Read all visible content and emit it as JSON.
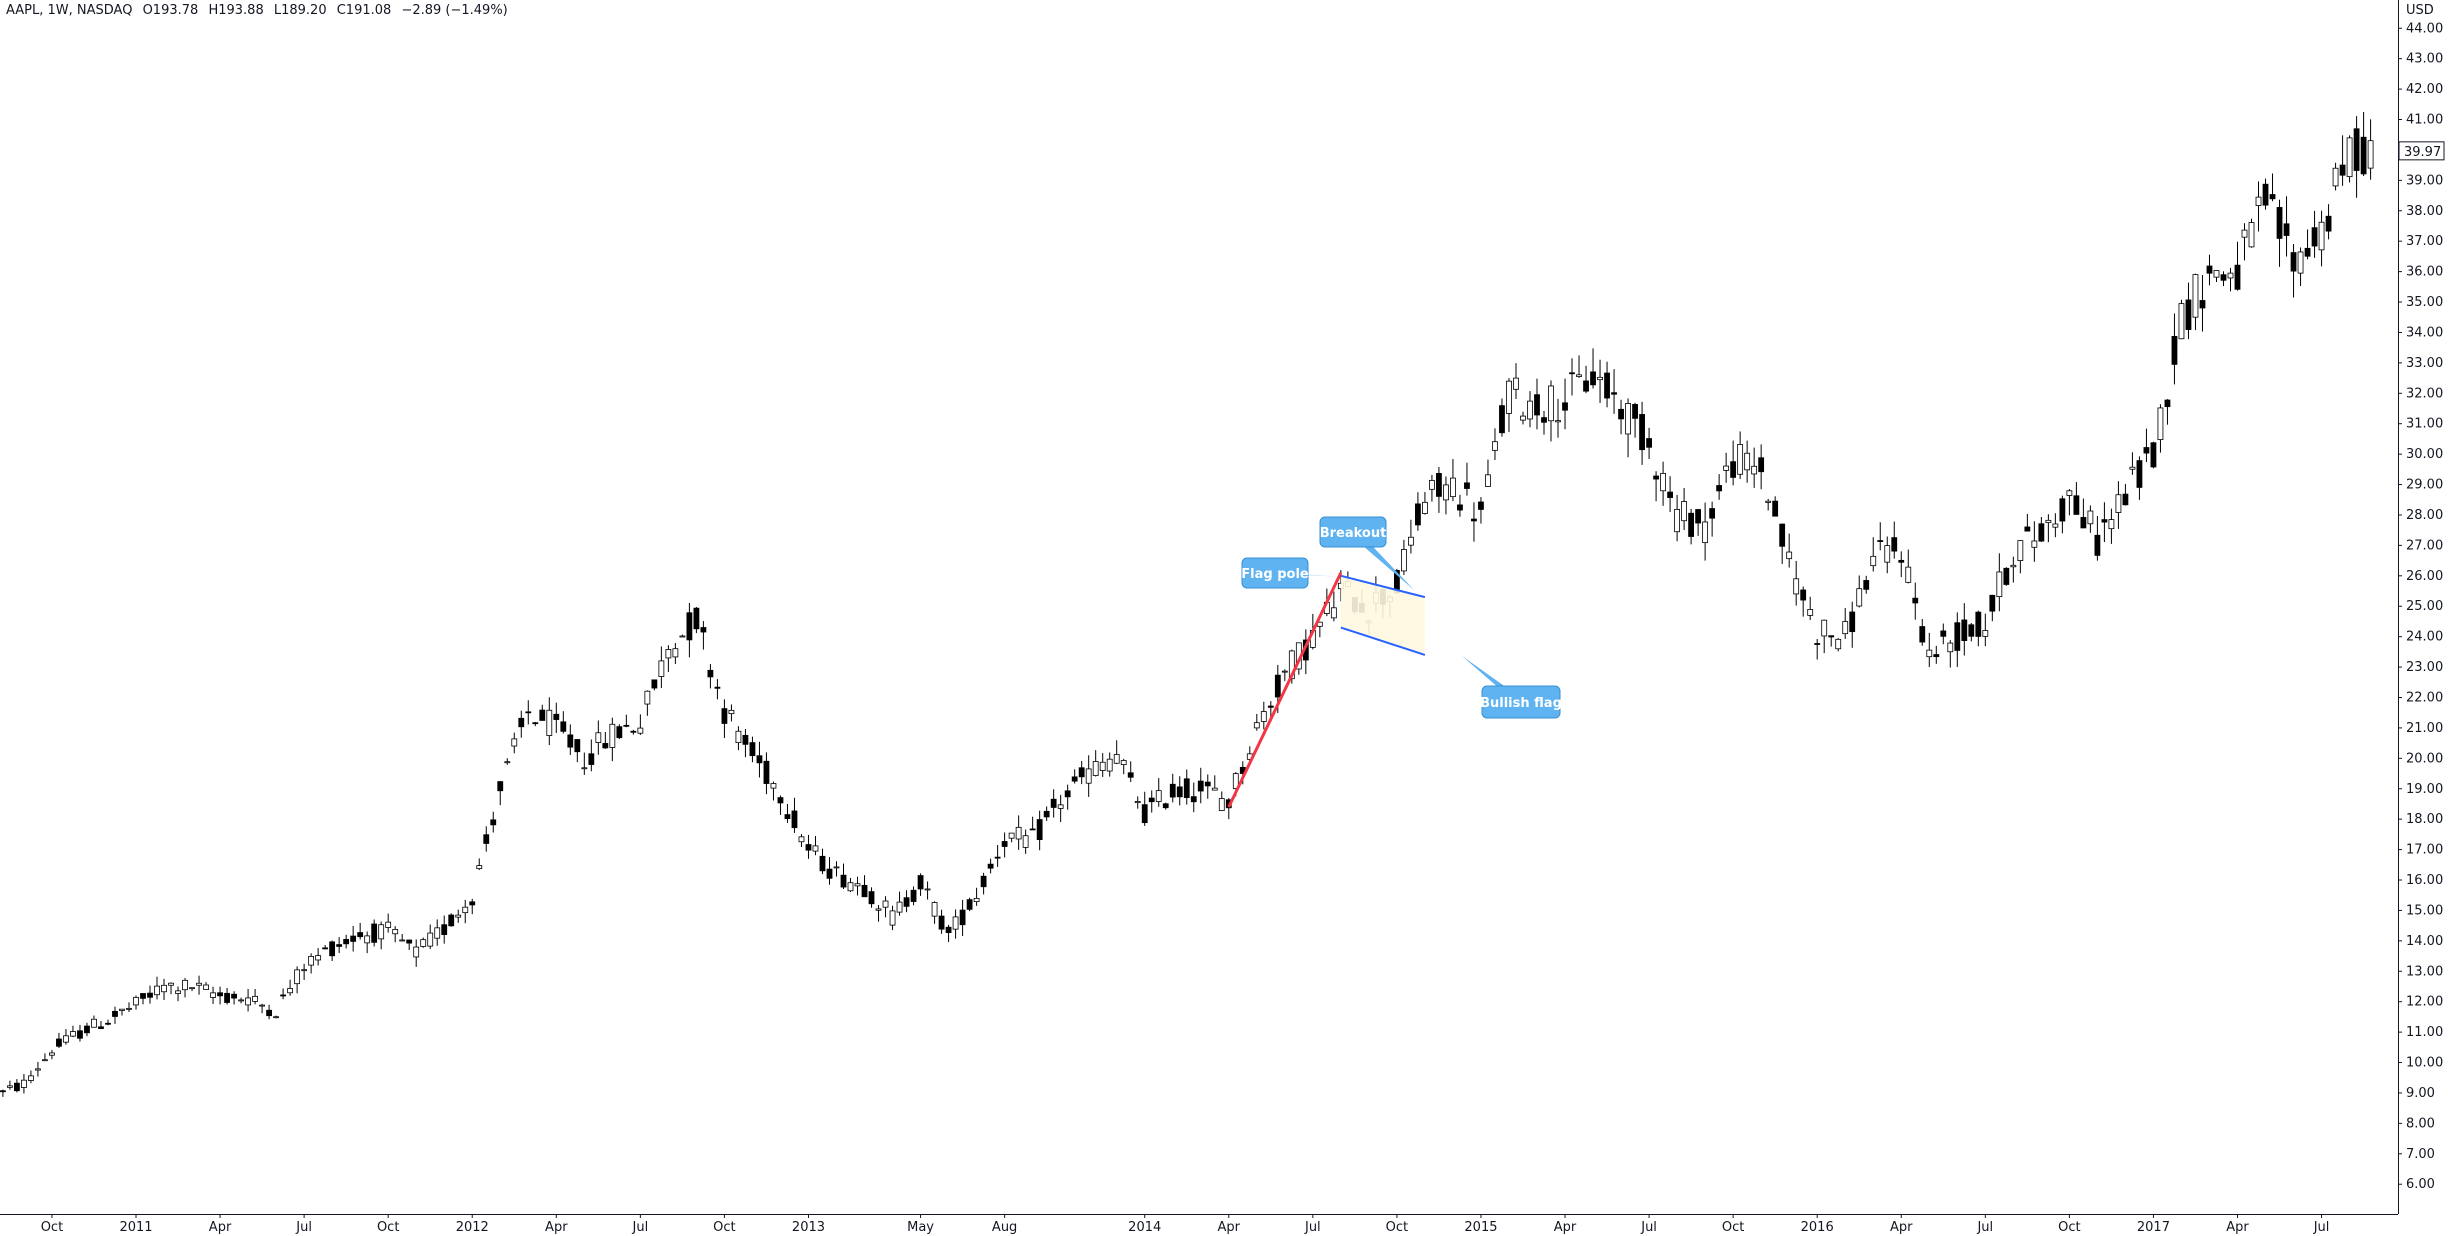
{
  "header": {
    "symbol": "AAPL, 1W, NASDAQ",
    "open": "O193.78",
    "high": "H193.88",
    "low": "L189.20",
    "close": "C191.08",
    "change": "−2.89 (−1.49%)"
  },
  "currency": "USD",
  "last_price_label": "39.97",
  "chart_data": {
    "type": "candlestick",
    "title": "",
    "ylabel": "USD",
    "ylim": [
      5,
      44.6
    ],
    "y_ticks": [
      "6.00",
      "7.00",
      "8.00",
      "9.00",
      "10.00",
      "11.00",
      "12.00",
      "13.00",
      "14.00",
      "15.00",
      "16.00",
      "17.00",
      "18.00",
      "19.00",
      "20.00",
      "21.00",
      "22.00",
      "23.00",
      "24.00",
      "25.00",
      "26.00",
      "27.00",
      "28.00",
      "29.00",
      "30.00",
      "31.00",
      "32.00",
      "33.00",
      "34.00",
      "35.00",
      "36.00",
      "37.00",
      "38.00",
      "39.00",
      "40.00",
      "41.00",
      "42.00",
      "43.00",
      "44.00"
    ],
    "x_ticks": [
      {
        "label": "Oct",
        "date": "2010-10"
      },
      {
        "label": "2011",
        "date": "2011-01"
      },
      {
        "label": "Apr",
        "date": "2011-04"
      },
      {
        "label": "Jul",
        "date": "2011-07"
      },
      {
        "label": "Oct",
        "date": "2011-10"
      },
      {
        "label": "2012",
        "date": "2012-01"
      },
      {
        "label": "Apr",
        "date": "2012-04"
      },
      {
        "label": "Jul",
        "date": "2012-07"
      },
      {
        "label": "Oct",
        "date": "2012-10"
      },
      {
        "label": "2013",
        "date": "2013-01"
      },
      {
        "label": "May",
        "date": "2013-05"
      },
      {
        "label": "Aug",
        "date": "2013-08"
      },
      {
        "label": "2014",
        "date": "2014-01"
      },
      {
        "label": "Apr",
        "date": "2014-04"
      },
      {
        "label": "Jul",
        "date": "2014-07"
      },
      {
        "label": "Oct",
        "date": "2014-10"
      },
      {
        "label": "2015",
        "date": "2015-01"
      },
      {
        "label": "Apr",
        "date": "2015-04"
      },
      {
        "label": "Jul",
        "date": "2015-07"
      },
      {
        "label": "Oct",
        "date": "2015-10"
      },
      {
        "label": "2016",
        "date": "2016-01"
      },
      {
        "label": "Apr",
        "date": "2016-04"
      },
      {
        "label": "Jul",
        "date": "2016-07"
      },
      {
        "label": "Oct",
        "date": "2016-10"
      },
      {
        "label": "2017",
        "date": "2017-01"
      },
      {
        "label": "Apr",
        "date": "2017-04"
      },
      {
        "label": "Jul",
        "date": "2017-07"
      }
    ],
    "close_path": [
      [
        "2010-08",
        8.9
      ],
      [
        "2010-09",
        9.3
      ],
      [
        "2010-10",
        10.4
      ],
      [
        "2010-11",
        11.0
      ],
      [
        "2010-12",
        11.4
      ],
      [
        "2011-01",
        11.9
      ],
      [
        "2011-02",
        12.5
      ],
      [
        "2011-03",
        12.5
      ],
      [
        "2011-04",
        12.2
      ],
      [
        "2011-05",
        12.1
      ],
      [
        "2011-06",
        11.7
      ],
      [
        "2011-07",
        13.2
      ],
      [
        "2011-08",
        13.8
      ],
      [
        "2011-09",
        14.2
      ],
      [
        "2011-10",
        14.3
      ],
      [
        "2011-11",
        13.6
      ],
      [
        "2011-12",
        14.4
      ],
      [
        "2012-01",
        15.5
      ],
      [
        "2012-02",
        19.0
      ],
      [
        "2012-03",
        21.5
      ],
      [
        "2012-04",
        21.0
      ],
      [
        "2012-05",
        20.0
      ],
      [
        "2012-06",
        20.8
      ],
      [
        "2012-07",
        21.2
      ],
      [
        "2012-08",
        23.6
      ],
      [
        "2012-09",
        24.6
      ],
      [
        "2012-10",
        21.6
      ],
      [
        "2012-11",
        20.1
      ],
      [
        "2012-12",
        18.9
      ],
      [
        "2013-01",
        17.0
      ],
      [
        "2013-02",
        16.2
      ],
      [
        "2013-03",
        15.8
      ],
      [
        "2013-04",
        14.8
      ],
      [
        "2013-05",
        15.9
      ],
      [
        "2013-06",
        14.2
      ],
      [
        "2013-07",
        15.5
      ],
      [
        "2013-08",
        17.4
      ],
      [
        "2013-09",
        17.3
      ],
      [
        "2013-10",
        18.6
      ],
      [
        "2013-11",
        19.5
      ],
      [
        "2013-12",
        20.1
      ],
      [
        "2014-01",
        18.2
      ],
      [
        "2014-02",
        18.9
      ],
      [
        "2014-03",
        19.0
      ],
      [
        "2014-04",
        18.6
      ],
      [
        "2014-05",
        21.0
      ],
      [
        "2014-06",
        22.8
      ],
      [
        "2014-07",
        24.0
      ],
      [
        "2014-08",
        25.5
      ],
      [
        "2014-09",
        25.0
      ],
      [
        "2014-10",
        25.7
      ],
      [
        "2014-11",
        28.5
      ],
      [
        "2014-12",
        29.0
      ],
      [
        "2015-01",
        28.0
      ],
      [
        "2015-02",
        32.0
      ],
      [
        "2015-03",
        31.6
      ],
      [
        "2015-04",
        31.8
      ],
      [
        "2015-05",
        32.6
      ],
      [
        "2015-06",
        31.6
      ],
      [
        "2015-07",
        30.4
      ],
      [
        "2015-08",
        28.0
      ],
      [
        "2015-09",
        27.7
      ],
      [
        "2015-10",
        29.8
      ],
      [
        "2015-11",
        29.5
      ],
      [
        "2015-12",
        26.4
      ],
      [
        "2016-01",
        24.2
      ],
      [
        "2016-02",
        24.0
      ],
      [
        "2016-03",
        26.5
      ],
      [
        "2016-04",
        26.9
      ],
      [
        "2016-05",
        23.4
      ],
      [
        "2016-06",
        24.0
      ],
      [
        "2016-07",
        24.4
      ],
      [
        "2016-08",
        26.8
      ],
      [
        "2016-09",
        27.4
      ],
      [
        "2016-10",
        28.6
      ],
      [
        "2016-11",
        27.2
      ],
      [
        "2016-12",
        28.7
      ],
      [
        "2017-01",
        30.0
      ],
      [
        "2017-02",
        34.5
      ],
      [
        "2017-03",
        35.9
      ],
      [
        "2017-04",
        36.0
      ],
      [
        "2017-05",
        38.3
      ],
      [
        "2017-06",
        36.3
      ],
      [
        "2017-07",
        37.4
      ],
      [
        "2017-08",
        39.8
      ],
      [
        "2017-09",
        40.2
      ]
    ],
    "annotations": {
      "flag_pole": {
        "label": "Flag pole",
        "from": [
          "2014-04",
          18.4
        ],
        "to": [
          "2014-08",
          26.1
        ],
        "color": "#f23645"
      },
      "flag_upper": {
        "from": [
          "2014-08",
          26.0
        ],
        "to": [
          "2014-11",
          25.3
        ],
        "color": "#2962ff"
      },
      "flag_lower": {
        "from": [
          "2014-08",
          24.3
        ],
        "to": [
          "2014-11",
          23.4
        ],
        "color": "#2962ff"
      },
      "flag_zone_color": "#fff8e1",
      "breakout_label": "Breakout",
      "bullish_flag_label": "Bullish flag",
      "callout_color": "#5fb3f0"
    }
  }
}
